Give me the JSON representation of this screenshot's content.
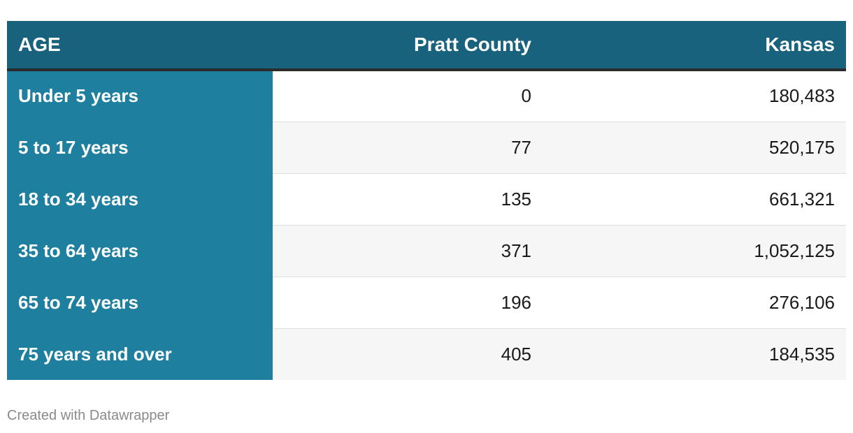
{
  "chart_data": {
    "type": "table",
    "columns": [
      "AGE",
      "Pratt County",
      "Kansas"
    ],
    "rows": [
      {
        "label": "Under 5 years",
        "values": [
          "0",
          "180,483"
        ]
      },
      {
        "label": "5 to 17 years",
        "values": [
          "77",
          "520,175"
        ]
      },
      {
        "label": "18 to 34 years",
        "values": [
          "135",
          "661,321"
        ]
      },
      {
        "label": "35 to 64 years",
        "values": [
          "371",
          "1,052,125"
        ]
      },
      {
        "label": "65 to 74 years",
        "values": [
          "196",
          "276,106"
        ]
      },
      {
        "label": "75 years and over",
        "values": [
          "405",
          "184,535"
        ]
      }
    ]
  },
  "footer": {
    "credit": "Created with Datawrapper"
  },
  "colors": {
    "header_bg": "#18627d",
    "label_column_bg": "#1e7f9e",
    "header_rule": "#2b2b2b",
    "alt_row_bg": "#f6f6f6"
  }
}
